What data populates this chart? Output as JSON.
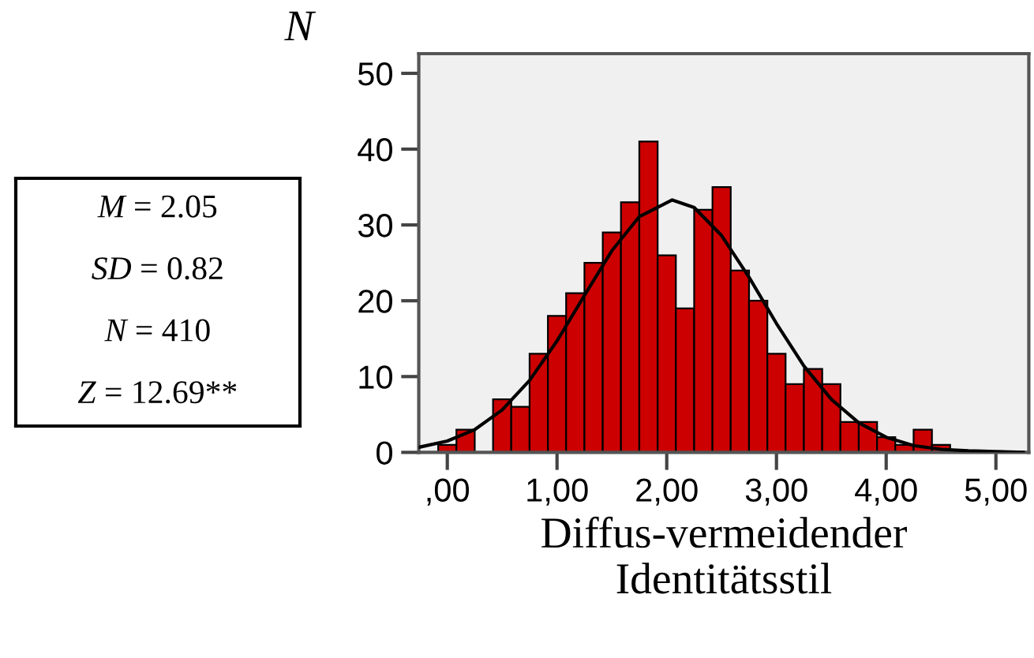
{
  "chart_data": {
    "type": "histogram",
    "ylabel": "N",
    "xlabel": "Diffus-vermeidender\nIdentitätsstil",
    "bins": [
      -0.083,
      0.083,
      0.25,
      0.417,
      0.583,
      0.75,
      0.917,
      1.083,
      1.25,
      1.417,
      1.583,
      1.75,
      1.917,
      2.083,
      2.25,
      2.417,
      2.583,
      2.75,
      2.917,
      3.083,
      3.25,
      3.417,
      3.583,
      3.75,
      3.917,
      4.083,
      4.25,
      4.417,
      4.583
    ],
    "values": [
      1,
      3,
      0,
      7,
      6,
      13,
      18,
      21,
      25,
      29,
      33,
      41,
      26,
      19,
      32,
      35,
      24,
      20,
      13,
      9,
      11,
      9,
      4,
      4,
      2,
      1,
      3,
      1
    ],
    "color": "#cc0000",
    "series": [
      {
        "type": "line",
        "color": "#000000",
        "x": [
          -0.25,
          0,
          0.25,
          0.5,
          0.75,
          1.0,
          1.25,
          1.5,
          1.75,
          2.05,
          2.25,
          2.5,
          2.75,
          3.0,
          3.25,
          3.5,
          3.75,
          4.0,
          4.25,
          4.5,
          4.75,
          5.0,
          5.25
        ],
        "values": [
          0.7,
          1.5,
          3.0,
          5.6,
          9.5,
          14.7,
          20.7,
          26.6,
          31.1,
          33.3,
          32.3,
          28.6,
          23.1,
          17.0,
          11.4,
          7.0,
          3.9,
          2.0,
          0.9,
          0.4,
          0.2,
          0.1,
          0.0
        ]
      }
    ],
    "xlim": [
      -0.26,
      5.3
    ],
    "xticks": [
      {
        "value": 0,
        "label": ",00"
      },
      {
        "value": 1,
        "label": "1,00"
      },
      {
        "value": 2,
        "label": "2,00"
      },
      {
        "value": 3,
        "label": "3,00"
      },
      {
        "value": 4,
        "label": "4,00"
      },
      {
        "value": 5,
        "label": "5,00"
      }
    ],
    "ylim": [
      0,
      52.6
    ],
    "yticks": [
      0,
      10,
      20,
      30,
      40,
      50
    ],
    "grid": false,
    "legend": false,
    "annotations": [
      "M = 2.05",
      "SD = 0.82",
      "N = 410",
      "Z = 12.69**"
    ]
  }
}
